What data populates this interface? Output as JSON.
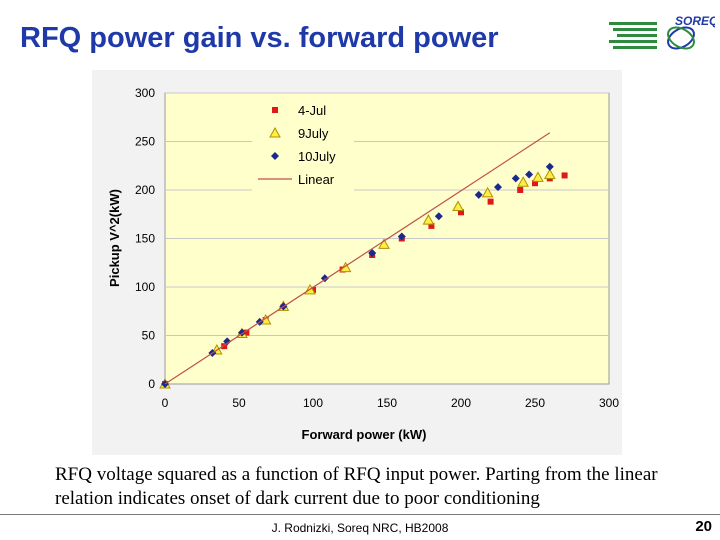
{
  "slide": {
    "title": "RFQ power gain vs.  forward power",
    "logo_text": "SOREQ",
    "caption": "RFQ voltage squared as a function of RFQ input power. Parting from the linear relation indicates onset of dark current due to poor conditioning",
    "footer": "J. Rodnizki, Soreq NRC, HB2008",
    "page_number": "20"
  },
  "colors": {
    "title": "#1f3aa8",
    "plot_background": "#ffffcc",
    "jul4": "#e01818",
    "july9_fill": "#ffee44",
    "july9_stroke": "#b09000",
    "july10": "#1a2a8c",
    "linear": "#c0504d"
  },
  "chart_data": {
    "type": "scatter",
    "xlabel": "Forward power (kW)",
    "ylabel": "Pickup V^2(kW)",
    "xlim": [
      0,
      300
    ],
    "ylim": [
      0,
      300
    ],
    "xticks": [
      "0",
      "50",
      "100",
      "150",
      "200",
      "250",
      "300"
    ],
    "yticks": [
      "0",
      "50",
      "100",
      "150",
      "200",
      "250",
      "300"
    ],
    "grid": true,
    "legend_position": "top-left",
    "series": [
      {
        "name": "4-Jul",
        "marker": "square",
        "points": [
          [
            0,
            0
          ],
          [
            40,
            39
          ],
          [
            55,
            53
          ],
          [
            68,
            66
          ],
          [
            80,
            79
          ],
          [
            100,
            97
          ],
          [
            120,
            118
          ],
          [
            140,
            133
          ],
          [
            160,
            150
          ],
          [
            180,
            163
          ],
          [
            200,
            177
          ],
          [
            220,
            188
          ],
          [
            240,
            200
          ],
          [
            250,
            207
          ],
          [
            260,
            212
          ],
          [
            270,
            215
          ]
        ]
      },
      {
        "name": "9July",
        "marker": "triangle",
        "points": [
          [
            0,
            0
          ],
          [
            35,
            35
          ],
          [
            52,
            52
          ],
          [
            68,
            66
          ],
          [
            80,
            80
          ],
          [
            98,
            97
          ],
          [
            122,
            120
          ],
          [
            148,
            144
          ],
          [
            178,
            169
          ],
          [
            198,
            183
          ],
          [
            218,
            197
          ],
          [
            242,
            208
          ],
          [
            252,
            213
          ],
          [
            260,
            216
          ]
        ]
      },
      {
        "name": "10July",
        "marker": "diamond",
        "points": [
          [
            0,
            0
          ],
          [
            32,
            32
          ],
          [
            42,
            44
          ],
          [
            52,
            53
          ],
          [
            64,
            64
          ],
          [
            80,
            80
          ],
          [
            108,
            109
          ],
          [
            140,
            135
          ],
          [
            160,
            152
          ],
          [
            185,
            173
          ],
          [
            212,
            195
          ],
          [
            225,
            203
          ],
          [
            237,
            212
          ],
          [
            246,
            216
          ],
          [
            260,
            224
          ]
        ]
      },
      {
        "name": "Linear",
        "marker": "line",
        "points": [
          [
            0,
            0
          ],
          [
            260,
            259
          ]
        ]
      }
    ]
  }
}
